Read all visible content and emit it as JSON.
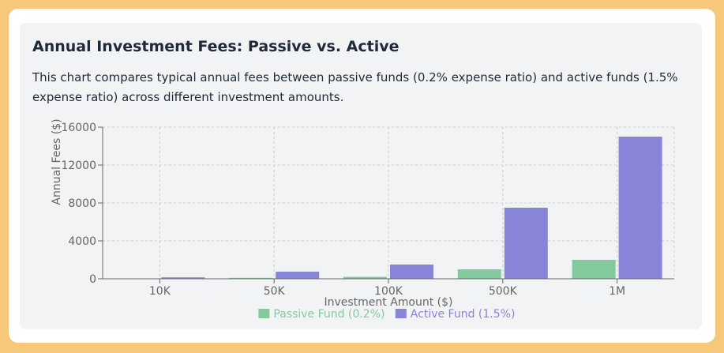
{
  "page": {
    "title": "Annual Investment Fees: Passive vs. Active",
    "description": "This chart compares typical annual fees between passive funds (0.2% expense ratio) and active funds (1.5% expense ratio) across different investment amounts."
  },
  "colors": {
    "background": "#f7c77a",
    "passive": "#82ca9d",
    "active": "#8884d8"
  },
  "chart_data": {
    "type": "bar",
    "categories": [
      "10K",
      "50K",
      "100K",
      "500K",
      "1M"
    ],
    "series": [
      {
        "name": "Passive Fund (0.2%)",
        "color": "#82ca9d",
        "values": [
          20,
          100,
          200,
          1000,
          2000
        ]
      },
      {
        "name": "Active Fund (1.5%)",
        "color": "#8884d8",
        "values": [
          150,
          750,
          1500,
          7500,
          15000
        ]
      }
    ],
    "xlabel": "Investment Amount ($)",
    "ylabel": "Annual Fees ($)",
    "ylim": [
      0,
      16000
    ],
    "yticks": [
      0,
      4000,
      8000,
      12000,
      16000
    ],
    "grid": true,
    "legend": "bottom"
  }
}
